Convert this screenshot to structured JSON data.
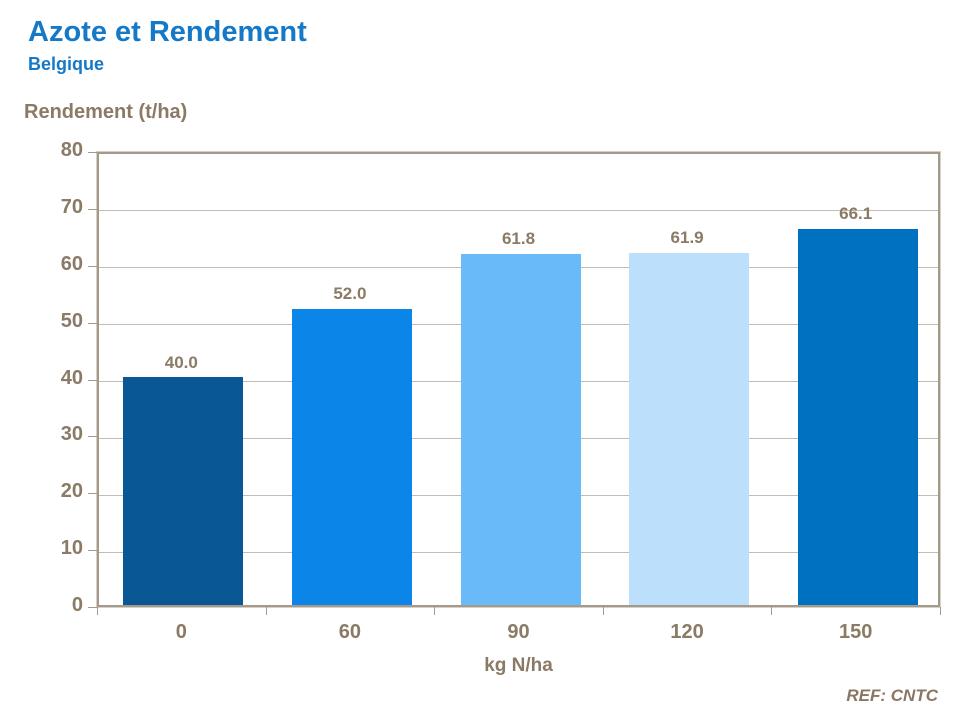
{
  "header": {
    "title": "Azote et Rendement",
    "subtitle": "Belgique"
  },
  "footer": {
    "ref_note": "REF: CNTC"
  },
  "colors": {
    "title_blue": "#1579c8",
    "axis_text_brown": "#8a7a66",
    "axis_line": "#a39a8c",
    "gridline": "#c2bcb2",
    "bar_colors": [
      "#0a5796",
      "#0b86e8",
      "#68bbf8",
      "#bce0fb",
      "#0070c0"
    ]
  },
  "chart_data": {
    "type": "bar",
    "title": "Azote et Rendement",
    "subtitle": "Belgique",
    "categories": [
      "0",
      "60",
      "90",
      "120",
      "150"
    ],
    "values": [
      40.0,
      52.0,
      61.8,
      61.9,
      66.1
    ],
    "value_labels": [
      "40.0",
      "52.0",
      "61.8",
      "61.9",
      "66.1"
    ],
    "xlabel": "kg N/ha",
    "ylabel": "Rendement (t/ha)",
    "ylim": [
      0,
      80
    ],
    "yticks": [
      0,
      10,
      20,
      30,
      40,
      50,
      60,
      70,
      80
    ],
    "grid": true,
    "legend": false,
    "bar_colors": [
      "#0a5796",
      "#0b86e8",
      "#68bbf8",
      "#bce0fb",
      "#0070c0"
    ]
  }
}
